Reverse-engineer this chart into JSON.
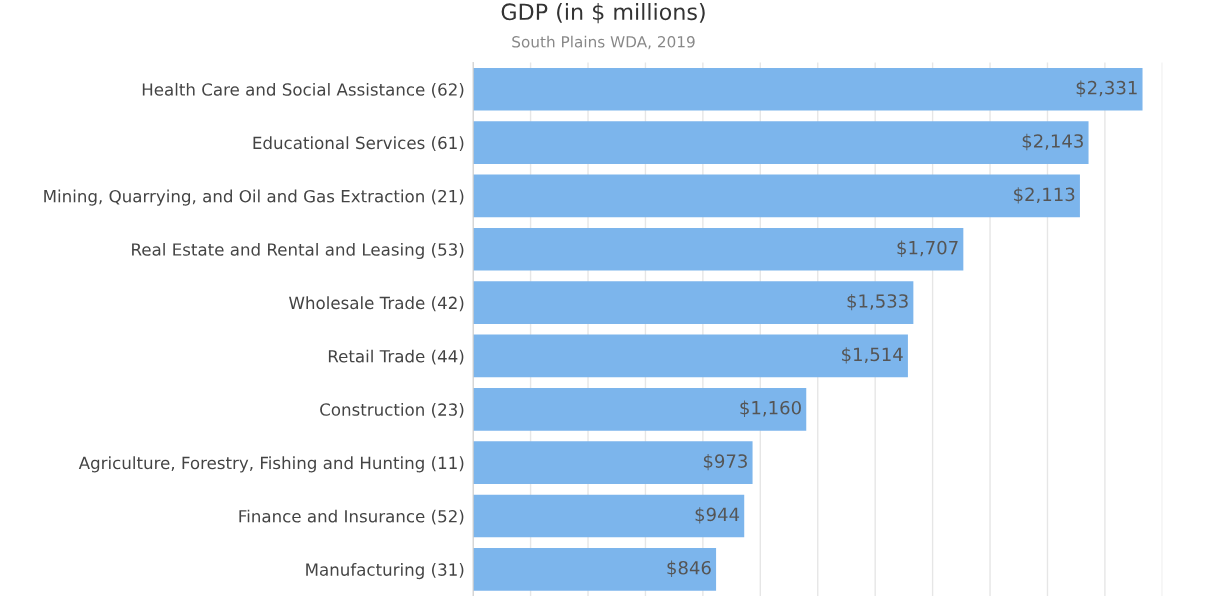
{
  "chart_data": {
    "type": "bar",
    "orientation": "horizontal",
    "title": "GDP (in $ millions)",
    "subtitle": "South Plains WDA, 2019",
    "categories": [
      "Health Care and Social Assistance (62)",
      "Educational Services (61)",
      "Mining, Quarrying, and Oil and Gas Extraction (21)",
      "Real Estate and Rental and Leasing (53)",
      "Wholesale Trade (42)",
      "Retail Trade (44)",
      "Construction (23)",
      "Agriculture, Forestry, Fishing and Hunting (11)",
      "Finance and Insurance (52)",
      "Manufacturing (31)"
    ],
    "values": [
      2331,
      2143,
      2113,
      1707,
      1533,
      1514,
      1160,
      973,
      944,
      846
    ],
    "value_labels": [
      "$2,331",
      "$2,143",
      "$2,113",
      "$1,707",
      "$1,533",
      "$1,514",
      "$1,160",
      "$973",
      "$944",
      "$846"
    ],
    "color": "#7cb5ec",
    "xlim": [
      0,
      2400
    ],
    "xticks": [
      {
        "value": 0,
        "label": null
      },
      {
        "value": 200,
        "label": null
      },
      {
        "value": 400,
        "label": null
      },
      {
        "value": 600,
        "label": null
      },
      {
        "value": 800,
        "label": null
      },
      {
        "value": 1000,
        "label": null
      },
      {
        "value": 1200,
        "label": null
      },
      {
        "value": 1400,
        "label": null
      },
      {
        "value": 1600,
        "label": null
      },
      {
        "value": 1800,
        "label": null
      },
      {
        "value": 2000,
        "label": null
      },
      {
        "value": 2200,
        "label": null
      },
      {
        "value": 2400,
        "label": null
      }
    ],
    "grid": "x",
    "legend": false
  }
}
